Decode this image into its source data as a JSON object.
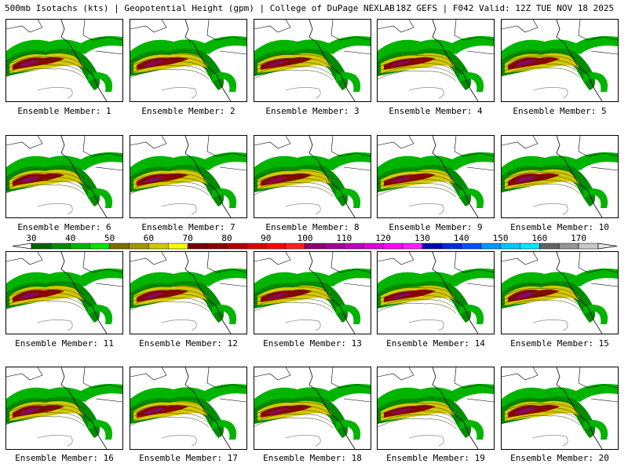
{
  "header": {
    "left": "500mb Isotachs (kts) | Geopotential Height (gpm) | College of DuPage NEXLAB",
    "right": "18Z GEFS | F042 Valid: 12Z TUE NOV 18 2025"
  },
  "panels": [
    {
      "label": "Ensemble Member: 1"
    },
    {
      "label": "Ensemble Member: 2"
    },
    {
      "label": "Ensemble Member: 3"
    },
    {
      "label": "Ensemble Member: 4"
    },
    {
      "label": "Ensemble Member: 5"
    },
    {
      "label": "Ensemble Member: 6"
    },
    {
      "label": "Ensemble Member: 7"
    },
    {
      "label": "Ensemble Member: 8"
    },
    {
      "label": "Ensemble Member: 9"
    },
    {
      "label": "Ensemble Member: 10"
    },
    {
      "label": "Ensemble Member: 11"
    },
    {
      "label": "Ensemble Member: 12"
    },
    {
      "label": "Ensemble Member: 13"
    },
    {
      "label": "Ensemble Member: 14"
    },
    {
      "label": "Ensemble Member: 15"
    },
    {
      "label": "Ensemble Member: 16"
    },
    {
      "label": "Ensemble Member: 17"
    },
    {
      "label": "Ensemble Member: 18"
    },
    {
      "label": "Ensemble Member: 19"
    },
    {
      "label": "Ensemble Member: 20"
    }
  ],
  "colorbar": {
    "ticks": [
      "30",
      "40",
      "50",
      "60",
      "70",
      "80",
      "90",
      "100",
      "110",
      "120",
      "130",
      "140",
      "150",
      "160",
      "170"
    ],
    "colors": [
      "#006400",
      "#008c00",
      "#00b400",
      "#00e600",
      "#7d6e00",
      "#a59600",
      "#d2c800",
      "#fafa00",
      "#780000",
      "#8c0000",
      "#b40000",
      "#dc0000",
      "#ff0000",
      "#ff1e1e",
      "#8c0078",
      "#a00096",
      "#be00be",
      "#dc00dc",
      "#ff00ff",
      "#ff1eff",
      "#0000b4",
      "#0028dc",
      "#0050ff",
      "#0096ff",
      "#00c8ff",
      "#00e6ff",
      "#646464",
      "#969696",
      "#c8c8c8"
    ],
    "under_color": "#ffffff",
    "over_color": "#e6e6e6"
  }
}
